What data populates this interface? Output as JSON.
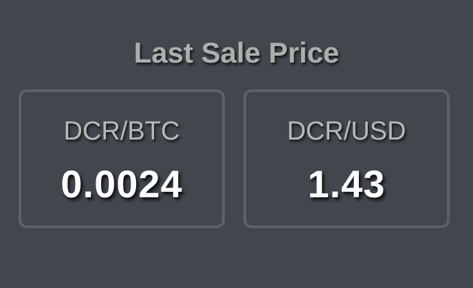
{
  "panel": {
    "title": "Last Sale Price",
    "cards": [
      {
        "pair": "DCR/BTC",
        "price": "0.0024"
      },
      {
        "pair": "DCR/USD",
        "price": "1.43"
      }
    ]
  },
  "colors": {
    "background": "#42464d",
    "card_border": "#5e6167",
    "title_text": "#a9b1ad",
    "pair_text": "#b5bcb8",
    "price_text": "#ffffff"
  }
}
